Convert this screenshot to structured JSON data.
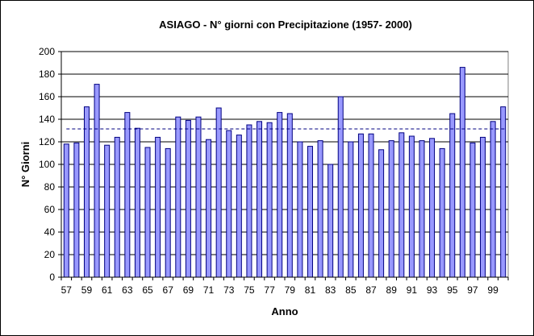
{
  "colors": {
    "bar_fill": "#9999FF",
    "bar_stroke": "#000080",
    "plot_bg": "#FFFFFF",
    "gridline": "#000000",
    "mean_line": "#000080"
  },
  "chart_data": {
    "type": "bar",
    "title": "ASIAGO - N°  giorni con Precipitazione (1957- 2000)",
    "xlabel": "Anno",
    "ylabel": "N° Giorni",
    "ylim": [
      0,
      200
    ],
    "yticks": [
      0,
      20,
      40,
      60,
      80,
      100,
      120,
      140,
      160,
      180,
      200
    ],
    "grid": true,
    "categories": [
      "57",
      "58",
      "59",
      "60",
      "61",
      "62",
      "63",
      "64",
      "65",
      "66",
      "67",
      "68",
      "69",
      "70",
      "71",
      "72",
      "73",
      "74",
      "75",
      "76",
      "77",
      "78",
      "79",
      "80",
      "81",
      "82",
      "83",
      "84",
      "85",
      "86",
      "87",
      "88",
      "89",
      "90",
      "91",
      "92",
      "93",
      "94",
      "95",
      "96",
      "97",
      "98",
      "99",
      "100"
    ],
    "x_tick_labels": [
      "57",
      "59",
      "61",
      "63",
      "65",
      "67",
      "69",
      "71",
      "73",
      "75",
      "77",
      "79",
      "81",
      "83",
      "85",
      "87",
      "89",
      "91",
      "93",
      "95",
      "97",
      "99"
    ],
    "values": [
      118,
      119,
      151,
      171,
      117,
      124,
      146,
      132,
      115,
      124,
      114,
      142,
      139,
      142,
      122,
      150,
      130,
      126,
      135,
      138,
      137,
      146,
      145,
      120,
      116,
      121,
      100,
      160,
      120,
      127,
      127,
      113,
      121,
      128,
      125,
      121,
      123,
      114,
      145,
      186,
      119,
      124,
      138,
      151
    ],
    "mean_line": 131.4
  }
}
